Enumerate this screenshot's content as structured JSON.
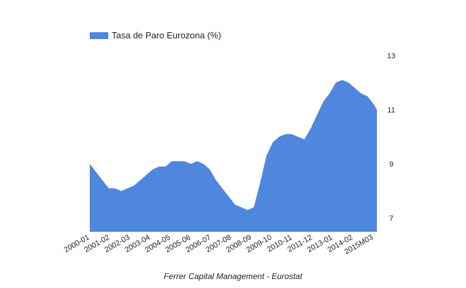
{
  "chart_data": {
    "type": "area",
    "title": "",
    "caption": "Ferrer Capital Management - Eurostat",
    "xlabel": "",
    "ylabel": "",
    "ylim": [
      6.5,
      13
    ],
    "yticks": [
      7,
      9,
      11,
      13
    ],
    "y_axis_side": "right",
    "grid": false,
    "legend_position": "top-left",
    "color": "#4f86de",
    "x_tick_labels": [
      "2000-01",
      "2001-02",
      "2002-03",
      "2003-04",
      "2004-05",
      "2005-06",
      "2006-07",
      "2007-08",
      "2008-09",
      "2009-10",
      "2010-11",
      "2011-12",
      "2013-01",
      "2014-02",
      "2015M03"
    ],
    "series": [
      {
        "name": "Tasa de Paro Eurozona (%)",
        "x": [
          "2000-01",
          "2000-05",
          "2000-09",
          "2001-01",
          "2001-05",
          "2001-09",
          "2002-01",
          "2002-05",
          "2002-09",
          "2003-01",
          "2003-05",
          "2003-09",
          "2004-01",
          "2004-05",
          "2004-09",
          "2005-01",
          "2005-05",
          "2005-09",
          "2006-01",
          "2006-05",
          "2006-09",
          "2007-01",
          "2007-05",
          "2007-09",
          "2008-01",
          "2008-05",
          "2008-09",
          "2009-01",
          "2009-05",
          "2009-09",
          "2010-01",
          "2010-05",
          "2010-09",
          "2011-01",
          "2011-05",
          "2011-09",
          "2012-01",
          "2012-05",
          "2012-09",
          "2013-01",
          "2013-05",
          "2013-09",
          "2014-01",
          "2014-05",
          "2014-09",
          "2015-01",
          "2015-03"
        ],
        "values": [
          9.0,
          8.7,
          8.4,
          8.1,
          8.1,
          8.0,
          8.1,
          8.2,
          8.4,
          8.6,
          8.8,
          8.9,
          8.9,
          9.1,
          9.1,
          9.1,
          9.0,
          9.1,
          9.0,
          8.8,
          8.4,
          8.1,
          7.8,
          7.5,
          7.4,
          7.3,
          7.4,
          8.3,
          9.3,
          9.8,
          10.0,
          10.1,
          10.1,
          10.0,
          9.9,
          10.3,
          10.8,
          11.3,
          11.6,
          12.0,
          12.1,
          12.0,
          11.8,
          11.6,
          11.5,
          11.2,
          11.0
        ]
      }
    ]
  }
}
